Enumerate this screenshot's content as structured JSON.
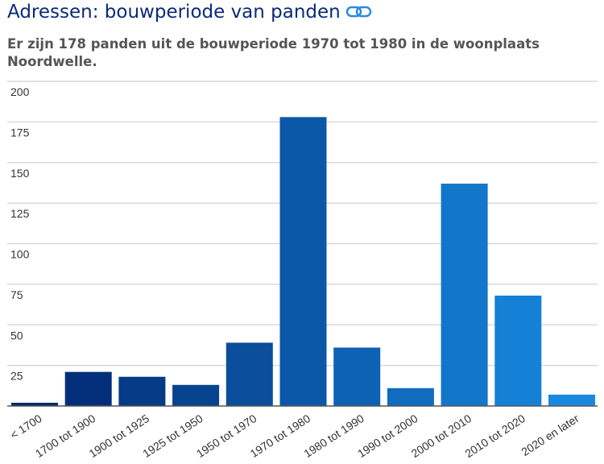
{
  "title": "Adressen: bouwperiode van panden",
  "link_icon": "link-icon",
  "subtitle": "Er zijn 178 panden uit de bouwperiode 1970 tot 1980 in de woonplaats Noordwelle.",
  "chart_data": {
    "type": "bar",
    "categories": [
      "< 1700",
      "1700 tot 1900",
      "1900 tot 1925",
      "1925 tot 1950",
      "1950 tot 1970",
      "1970 tot 1980",
      "1980 tot 1990",
      "1990 tot 2000",
      "2000 tot 2010",
      "2010 tot 2020",
      "2020 en later"
    ],
    "values": [
      2,
      21,
      18,
      13,
      39,
      178,
      36,
      11,
      137,
      68,
      7
    ],
    "colors": [
      "#042a6e",
      "#032f7a",
      "#053a87",
      "#07448f",
      "#0a4e9c",
      "#0b58a8",
      "#0d62b4",
      "#0f6cbf",
      "#1276cb",
      "#1480d6",
      "#178ae0"
    ],
    "ylim": [
      0,
      200
    ],
    "yticks": [
      25,
      50,
      75,
      100,
      125,
      150,
      175,
      200
    ],
    "grid": true,
    "title": "",
    "xlabel": "",
    "ylabel": ""
  }
}
